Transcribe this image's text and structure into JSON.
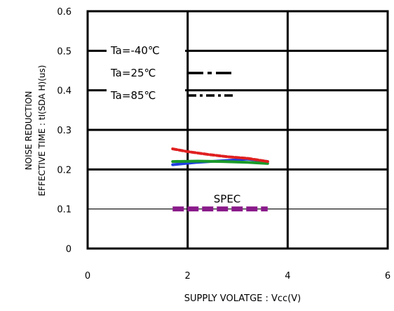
{
  "chart_data": {
    "type": "line",
    "title": "",
    "xlabel": "SUPPLY VOLATGE : Vcc(V)",
    "ylabel_line1": "NOISE REDUCTION",
    "ylabel_line2": "EFFECTIVE TIME : tI(SDA H)(us)",
    "xlim": [
      0,
      6
    ],
    "ylim": [
      0,
      0.6
    ],
    "x_ticks": [
      {
        "value": 0,
        "label": "0"
      },
      {
        "value": 2,
        "label": "2"
      },
      {
        "value": 4,
        "label": "4"
      },
      {
        "value": 6,
        "label": "6"
      }
    ],
    "y_ticks": [
      {
        "value": 0,
        "label": "0"
      },
      {
        "value": 0.1,
        "label": "0.1"
      },
      {
        "value": 0.2,
        "label": "0.2"
      },
      {
        "value": 0.3,
        "label": "0.3"
      },
      {
        "value": 0.4,
        "label": "0.4"
      },
      {
        "value": 0.5,
        "label": "0.5"
      },
      {
        "value": 0.6,
        "label": "0.6"
      }
    ],
    "grid": true,
    "legend_position": "top-left",
    "series": [
      {
        "name": "Ta=-40℃",
        "color": "#1f3fe0",
        "x": [
          1.7,
          2.2,
          2.7,
          3.2,
          3.6
        ],
        "y": [
          0.212,
          0.218,
          0.222,
          0.226,
          0.22
        ]
      },
      {
        "name": "Ta=25℃",
        "color": "#1a9a2a",
        "x": [
          1.7,
          2.2,
          2.7,
          3.2,
          3.6
        ],
        "y": [
          0.22,
          0.221,
          0.22,
          0.218,
          0.215
        ]
      },
      {
        "name": "Ta=85℃",
        "color": "#e02020",
        "x": [
          1.7,
          2.0,
          2.4,
          2.8,
          3.2,
          3.6
        ],
        "y": [
          0.252,
          0.245,
          0.238,
          0.232,
          0.228,
          0.22
        ]
      }
    ],
    "spec": {
      "label": "SPEC",
      "color": "#8a1a8a",
      "value": 0.1,
      "x_range": [
        1.7,
        3.6
      ]
    }
  }
}
